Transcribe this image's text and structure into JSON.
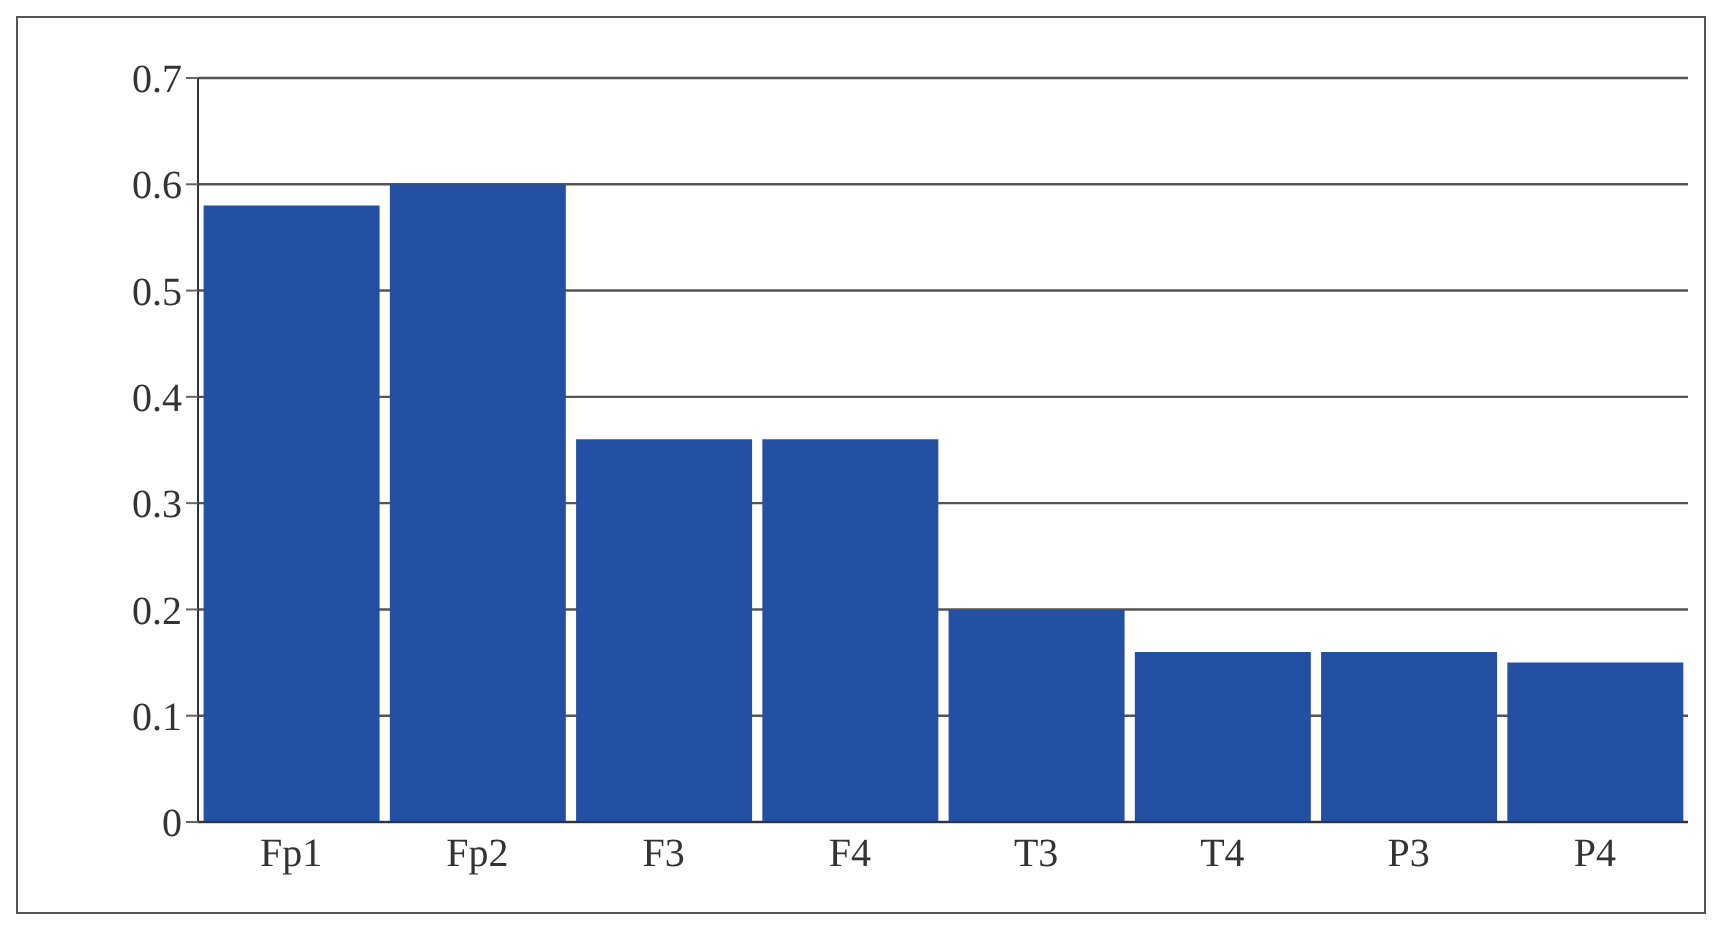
{
  "chart_data": {
    "type": "bar",
    "categories": [
      "Fp1",
      "Fp2",
      "F3",
      "F4",
      "T3",
      "T4",
      "P3",
      "P4"
    ],
    "values": [
      0.58,
      0.6,
      0.36,
      0.36,
      0.2,
      0.16,
      0.16,
      0.15
    ],
    "color": "#2450a4",
    "ylim": [
      0,
      0.7
    ],
    "yticks": [
      0,
      0.1,
      0.2,
      0.3,
      0.4,
      0.5,
      0.6,
      0.7
    ],
    "grid": "y"
  }
}
